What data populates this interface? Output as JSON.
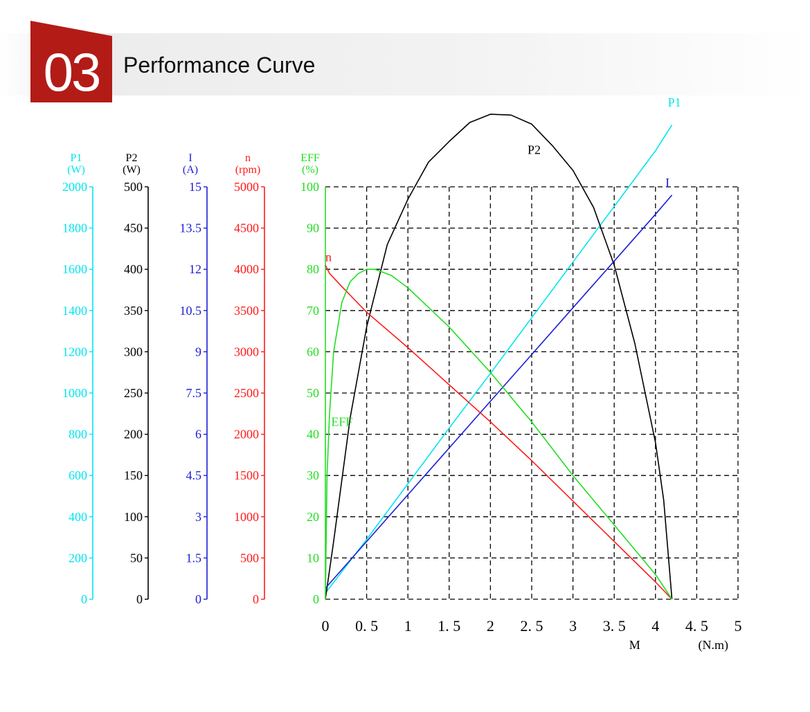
{
  "header": {
    "number": "03",
    "title": "Performance Curve",
    "accent_color": "#b31b17"
  },
  "chart_data": {
    "type": "line",
    "x_axis": {
      "label": "M",
      "unit": "(N.m)",
      "range": [
        0,
        5
      ],
      "ticks": [
        "0",
        "0.5",
        "1",
        "1.5",
        "2",
        "2.5",
        "3",
        "3.5",
        "4",
        "4.5",
        "5"
      ]
    },
    "y_axes": [
      {
        "key": "p1",
        "name": "P1",
        "unit": "(W)",
        "color": "#00e5ee",
        "range": [
          0,
          2000
        ],
        "ticks": [
          "0",
          "200",
          "400",
          "600",
          "800",
          "1000",
          "1200",
          "1400",
          "1600",
          "1800",
          "2000"
        ]
      },
      {
        "key": "p2",
        "name": "P2",
        "unit": "(W)",
        "color": "#000000",
        "range": [
          0,
          500
        ],
        "ticks": [
          "0",
          "50",
          "100",
          "150",
          "200",
          "250",
          "300",
          "350",
          "400",
          "450",
          "500"
        ]
      },
      {
        "key": "i",
        "name": "I",
        "unit": "(A)",
        "color": "#1d1dd6",
        "range": [
          0,
          15
        ],
        "ticks": [
          "0",
          "1.5",
          "3",
          "4.5",
          "6",
          "7.5",
          "9",
          "10.5",
          "12",
          "13.5",
          "15"
        ]
      },
      {
        "key": "n",
        "name": "n",
        "unit": "(rpm)",
        "color": "#ff1a1a",
        "range": [
          0,
          5000
        ],
        "ticks": [
          "0",
          "500",
          "1000",
          "1500",
          "2000",
          "2500",
          "3000",
          "3500",
          "4000",
          "4500",
          "5000"
        ]
      },
      {
        "key": "eff",
        "name": "EFF",
        "unit": "(%)",
        "color": "#22dd22",
        "range": [
          0,
          100
        ],
        "ticks": [
          "0",
          "10",
          "20",
          "30",
          "40",
          "50",
          "60",
          "70",
          "80",
          "90",
          "100"
        ]
      }
    ],
    "grid": true,
    "series": [
      {
        "name": "P1",
        "axis": "p1",
        "color": "#00e5ee",
        "points": [
          [
            0,
            30
          ],
          [
            0.5,
            290
          ],
          [
            1,
            560
          ],
          [
            1.5,
            830
          ],
          [
            2,
            1095
          ],
          [
            2.5,
            1365
          ],
          [
            3,
            1635
          ],
          [
            3.5,
            1905
          ],
          [
            4,
            2175
          ],
          [
            4.2,
            2300
          ]
        ]
      },
      {
        "name": "P2",
        "axis": "p2",
        "color": "#000000",
        "points": [
          [
            0,
            0
          ],
          [
            0.1,
            70
          ],
          [
            0.3,
            220
          ],
          [
            0.5,
            330
          ],
          [
            0.75,
            430
          ],
          [
            1,
            485
          ],
          [
            1.25,
            530
          ],
          [
            1.5,
            555
          ],
          [
            1.75,
            578
          ],
          [
            2,
            588
          ],
          [
            2.25,
            587
          ],
          [
            2.5,
            576
          ],
          [
            2.75,
            550
          ],
          [
            3,
            520
          ],
          [
            3.25,
            475
          ],
          [
            3.5,
            405
          ],
          [
            3.75,
            310
          ],
          [
            4,
            190
          ],
          [
            4.1,
            120
          ],
          [
            4.2,
            0
          ]
        ]
      },
      {
        "name": "I",
        "axis": "i",
        "color": "#1d1dd6",
        "points": [
          [
            0,
            0.4
          ],
          [
            0.5,
            2.1
          ],
          [
            1,
            3.8
          ],
          [
            1.5,
            5.5
          ],
          [
            2,
            7.2
          ],
          [
            2.5,
            8.9
          ],
          [
            3,
            10.6
          ],
          [
            3.5,
            12.3
          ],
          [
            4,
            14.0
          ],
          [
            4.2,
            14.7
          ]
        ]
      },
      {
        "name": "n",
        "axis": "n",
        "color": "#ff1a1a",
        "points": [
          [
            0,
            4050
          ],
          [
            0.05,
            3950
          ],
          [
            0.2,
            3790
          ],
          [
            0.5,
            3480
          ],
          [
            1,
            3050
          ],
          [
            1.5,
            2600
          ],
          [
            2,
            2150
          ],
          [
            2.5,
            1680
          ],
          [
            3,
            1190
          ],
          [
            3.5,
            700
          ],
          [
            4,
            210
          ],
          [
            4.2,
            0
          ]
        ]
      },
      {
        "name": "EFF",
        "axis": "eff",
        "color": "#22dd22",
        "points": [
          [
            0,
            0
          ],
          [
            0.02,
            30
          ],
          [
            0.05,
            45
          ],
          [
            0.1,
            60
          ],
          [
            0.2,
            72
          ],
          [
            0.3,
            77
          ],
          [
            0.4,
            79
          ],
          [
            0.5,
            80
          ],
          [
            0.6,
            80
          ],
          [
            0.8,
            78.5
          ],
          [
            1,
            75.5
          ],
          [
            1.5,
            66
          ],
          [
            2,
            55
          ],
          [
            2.5,
            43
          ],
          [
            3,
            30
          ],
          [
            3.5,
            18
          ],
          [
            4,
            6
          ],
          [
            4.2,
            0
          ]
        ]
      }
    ],
    "annotations": [
      {
        "text": "P2",
        "series": "P2",
        "x": 2.45,
        "y": 540
      },
      {
        "text": "P1",
        "series": "P1",
        "x": 4.15,
        "y": 2390
      },
      {
        "text": "I",
        "series": "I",
        "x": 4.12,
        "y": 15.0
      },
      {
        "text": "n",
        "series": "n",
        "x": 0.0,
        "y": 4100
      },
      {
        "text": "EFF",
        "series": "EFF",
        "x": 0.07,
        "y": 42
      }
    ]
  }
}
